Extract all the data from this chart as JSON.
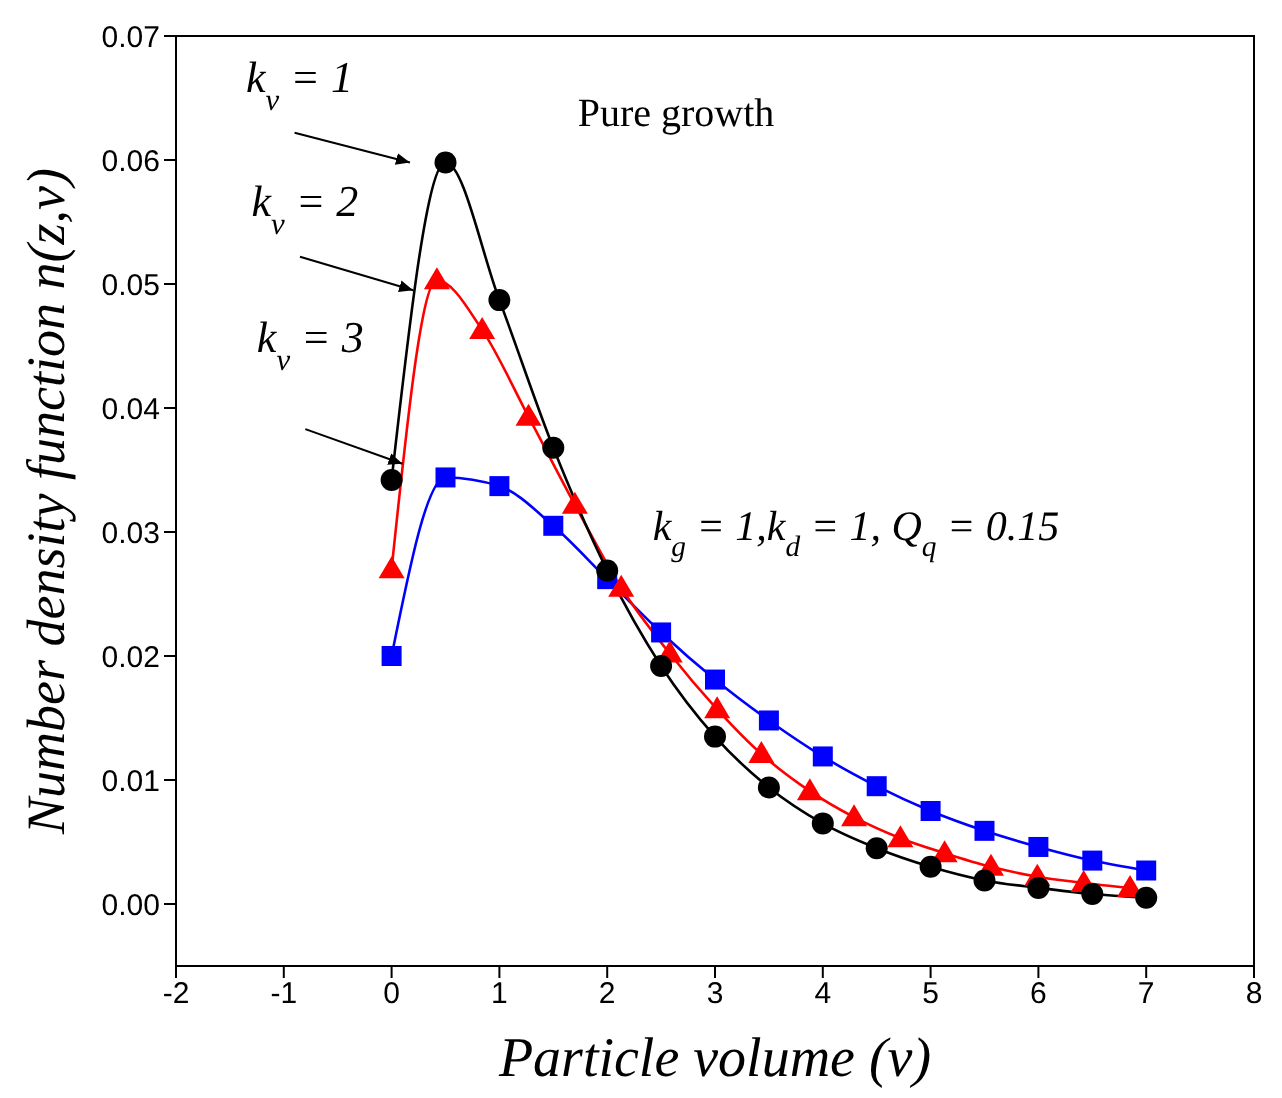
{
  "chart_data": {
    "type": "line",
    "xlabel": "Particle volume (v)",
    "ylabel": "Number density function n(z,v)",
    "annotations": [
      "Pure growth",
      "k$_{g}$ = 1,k$_{d}$ = 1, Q$_{q}$ = 0.15"
    ],
    "series": [
      {
        "name": "k$_{v}$ = 1",
        "color": "#000000",
        "marker": "circle",
        "x": [
          0,
          0.5,
          1,
          1.5,
          2,
          2.5,
          3,
          3.5,
          4,
          4.5,
          5,
          5.5,
          6,
          6.5,
          7
        ],
        "values": [
          0.0342,
          0.0598,
          0.0487,
          0.0368,
          0.0269,
          0.0192,
          0.0135,
          0.0094,
          0.0065,
          0.0045,
          0.003,
          0.0019,
          0.0013,
          0.0008,
          0.0005
        ]
      },
      {
        "name": "k$_{v}$ = 2",
        "color": "#ff0000",
        "marker": "triangle",
        "x": [
          0,
          0.42,
          0.84,
          1.27,
          1.7,
          2.13,
          2.58,
          3.02,
          3.43,
          3.88,
          4.29,
          4.72,
          5.13,
          5.56,
          5.99,
          6.42,
          6.85
        ],
        "values": [
          0.027,
          0.0503,
          0.0463,
          0.0393,
          0.0322,
          0.0255,
          0.0202,
          0.0157,
          0.0121,
          0.0091,
          0.007,
          0.0053,
          0.0041,
          0.003,
          0.0022,
          0.0017,
          0.0013
        ]
      },
      {
        "name": "k$_{v}$ = 3",
        "color": "#0000ff",
        "marker": "square",
        "x": [
          0,
          0.5,
          1,
          1.5,
          2,
          2.5,
          3,
          3.5,
          4,
          4.5,
          5,
          5.5,
          6,
          6.5,
          7
        ],
        "values": [
          0.02,
          0.0344,
          0.0337,
          0.0305,
          0.0262,
          0.0219,
          0.0181,
          0.0148,
          0.0119,
          0.0095,
          0.0075,
          0.0059,
          0.0046,
          0.0035,
          0.0027
        ]
      }
    ],
    "xlim": [
      -2,
      8
    ],
    "xticks": [
      -2,
      -1,
      0,
      1,
      2,
      3,
      4,
      5,
      6,
      7,
      8
    ],
    "ylim": [
      -0.005,
      0.07
    ],
    "yticks": [
      {
        "value": 0,
        "label": "0.00"
      },
      0.01,
      0.02,
      0.03,
      0.04,
      0.05,
      0.06,
      0.07
    ],
    "grid": false,
    "line_style": "solid"
  }
}
